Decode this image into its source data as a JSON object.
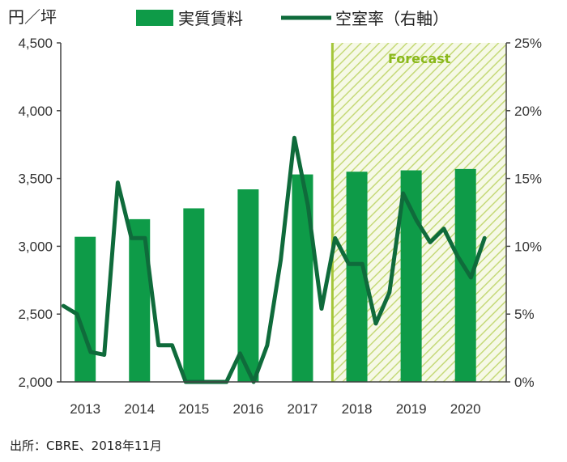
{
  "chart_data": {
    "type": "bar+line",
    "unit_label": "円／坪",
    "categories": [
      "2013",
      "2014",
      "2015",
      "2016",
      "2017",
      "2018",
      "2019",
      "2020"
    ],
    "series": [
      {
        "name": "実質賃料",
        "type": "bar",
        "axis": "left",
        "color": "#0e9b48",
        "values": [
          3070,
          3200,
          3280,
          3420,
          3530,
          3550,
          3560,
          3570
        ]
      },
      {
        "name": "空室率（右軸）",
        "type": "line",
        "axis": "right",
        "color": "#0f6b3b",
        "x": [
          2012.6,
          2012.85,
          2013.1,
          2013.35,
          2013.6,
          2013.85,
          2014.1,
          2014.35,
          2014.6,
          2014.85,
          2015.1,
          2015.35,
          2015.6,
          2015.85,
          2016.1,
          2016.35,
          2016.6,
          2016.85,
          2017.1,
          2017.35,
          2017.6,
          2017.85,
          2018.1,
          2018.35,
          2018.6,
          2018.85,
          2019.1,
          2019.35,
          2019.6,
          2019.85,
          2020.1,
          2020.35,
          2020.6
        ],
        "values": [
          5.6,
          5.0,
          2.2,
          2.0,
          14.7,
          10.6,
          10.6,
          2.7,
          2.7,
          0.0,
          0.0,
          0.0,
          0.0,
          2.1,
          0.0,
          2.7,
          9.0,
          18.0,
          13.0,
          5.4,
          10.6,
          8.7,
          8.7,
          4.3,
          6.6,
          13.9,
          11.9,
          10.3,
          11.3,
          9.3,
          7.7,
          10.6,
          null
        ]
      }
    ],
    "left_axis": {
      "min": 2000,
      "max": 4500,
      "ticks": [
        "2,000",
        "2,500",
        "3,000",
        "3,500",
        "4,000",
        "4,500"
      ]
    },
    "right_axis": {
      "min": 0,
      "max": 25,
      "ticks": [
        "0%",
        "5%",
        "10%",
        "15%",
        "20%",
        "25%"
      ]
    },
    "forecast": {
      "label": "Forecast",
      "start": 2017.55,
      "end": 2020.75
    },
    "grid": false,
    "legend_placement": "top"
  },
  "source": "出所：CBRE、2018年11月"
}
